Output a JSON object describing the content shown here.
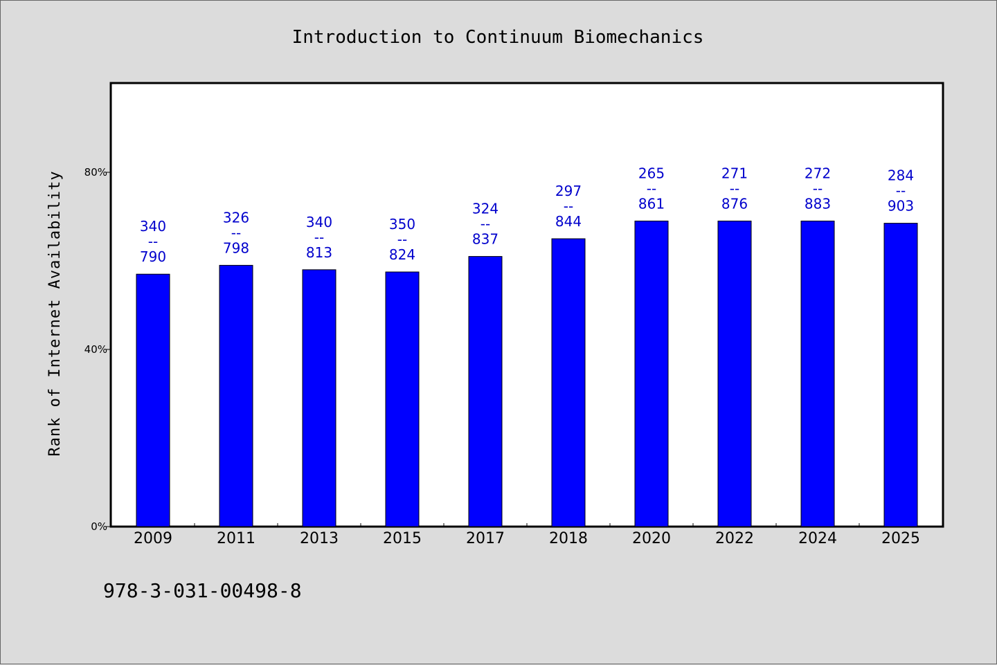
{
  "isbn": "978-3-031-00498-8",
  "colors": {
    "bar": "#0000ff",
    "label": "#0000cc",
    "background": "#dcdcdc",
    "plot_bg": "#ffffff"
  },
  "chart_data": {
    "type": "bar",
    "title": "Introduction to Continuum Biomechanics",
    "xlabel": "",
    "ylabel": "Rank of Internet Availability",
    "ylim": [
      0,
      100
    ],
    "yticks": [
      0,
      40,
      80
    ],
    "ytick_labels": [
      "0%",
      "40%",
      "80%"
    ],
    "grid": false,
    "categories": [
      "2009",
      "2011",
      "2013",
      "2015",
      "2017",
      "2018",
      "2020",
      "2022",
      "2024",
      "2025"
    ],
    "values": [
      57,
      59,
      58,
      57.5,
      61,
      65,
      69,
      69,
      69,
      68.5
    ],
    "labels": [
      [
        "340",
        "--",
        "790"
      ],
      [
        "326",
        "--",
        "798"
      ],
      [
        "340",
        "--",
        "813"
      ],
      [
        "350",
        "--",
        "824"
      ],
      [
        "324",
        "--",
        "837"
      ],
      [
        "297",
        "--",
        "844"
      ],
      [
        "265",
        "--",
        "861"
      ],
      [
        "271",
        "--",
        "876"
      ],
      [
        "272",
        "--",
        "883"
      ],
      [
        "284",
        "--",
        "903"
      ]
    ]
  }
}
